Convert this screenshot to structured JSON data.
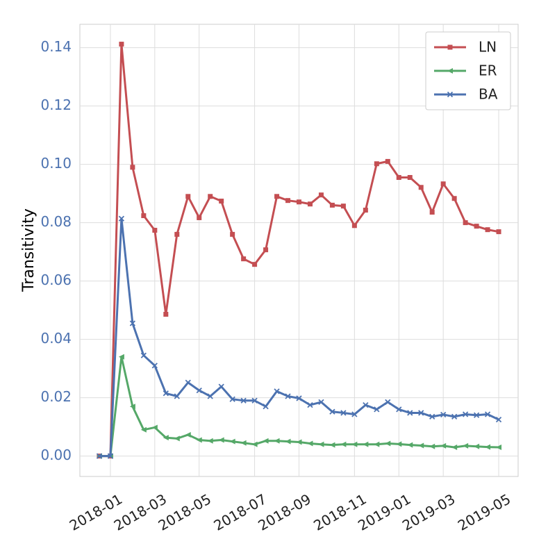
{
  "chart_data": {
    "type": "line",
    "y_label": "Transitivity",
    "categories": [
      null,
      "2018-01",
      null,
      null,
      null,
      "2018-03",
      null,
      null,
      null,
      "2018-05",
      null,
      null,
      null,
      null,
      "2018-07",
      null,
      null,
      null,
      "2018-09",
      null,
      null,
      null,
      null,
      "2018-11",
      null,
      null,
      null,
      "2019-01",
      null,
      null,
      null,
      "2019-03",
      null,
      null,
      null,
      null,
      "2019-05"
    ],
    "series": [
      {
        "name": "LN",
        "color": "#c44e52",
        "marker": "square",
        "values": [
          0,
          0,
          0.1412,
          0.099,
          0.0824,
          0.0774,
          0.0486,
          0.076,
          0.089,
          0.0817,
          0.089,
          0.0874,
          0.076,
          0.0676,
          0.0657,
          0.0707,
          0.089,
          0.0876,
          0.0871,
          0.0864,
          0.0895,
          0.086,
          0.0857,
          0.079,
          0.0843,
          0.1002,
          0.101,
          0.0955,
          0.0955,
          0.0921,
          0.0836,
          0.0933,
          0.0883,
          0.08,
          0.0788,
          0.0776,
          0.0769
        ]
      },
      {
        "name": "ER",
        "color": "#55a868",
        "marker": "triangle-left",
        "values": [
          0,
          0,
          0.034,
          0.017,
          0.009,
          0.0098,
          0.0063,
          0.006,
          0.0073,
          0.0055,
          0.0052,
          0.0055,
          0.005,
          0.0045,
          0.004,
          0.0052,
          0.0052,
          0.005,
          0.0048,
          0.0043,
          0.004,
          0.0038,
          0.004,
          0.004,
          0.004,
          0.004,
          0.0043,
          0.0041,
          0.0038,
          0.0036,
          0.0033,
          0.0035,
          0.003,
          0.0035,
          0.0033,
          0.0031,
          0.003
        ]
      },
      {
        "name": "BA",
        "color": "#4c72b0",
        "marker": "x",
        "values": [
          0,
          0,
          0.0814,
          0.0455,
          0.0345,
          0.031,
          0.0215,
          0.0205,
          0.0252,
          0.0225,
          0.0205,
          0.0238,
          0.0195,
          0.019,
          0.019,
          0.017,
          0.0222,
          0.0205,
          0.0198,
          0.0175,
          0.0185,
          0.0152,
          0.0148,
          0.0143,
          0.0175,
          0.016,
          0.0185,
          0.016,
          0.0148,
          0.0148,
          0.0135,
          0.0142,
          0.0135,
          0.0143,
          0.014,
          0.0143,
          0.0125
        ]
      }
    ],
    "ylim": [
      -0.007,
      0.148
    ],
    "yticks": [
      {
        "value": 0,
        "label": "0.00"
      },
      {
        "value": 0.02,
        "label": "0.02"
      },
      {
        "value": 0.04,
        "label": "0.04"
      },
      {
        "value": 0.06,
        "label": "0.06"
      },
      {
        "value": 0.08,
        "label": "0.08"
      },
      {
        "value": 0.1,
        "label": "0.10"
      },
      {
        "value": 0.12,
        "label": "0.12"
      },
      {
        "value": 0.14,
        "label": "0.14"
      }
    ],
    "ytick_color": "#4c72b0",
    "grid": true,
    "legend": "upper right"
  }
}
